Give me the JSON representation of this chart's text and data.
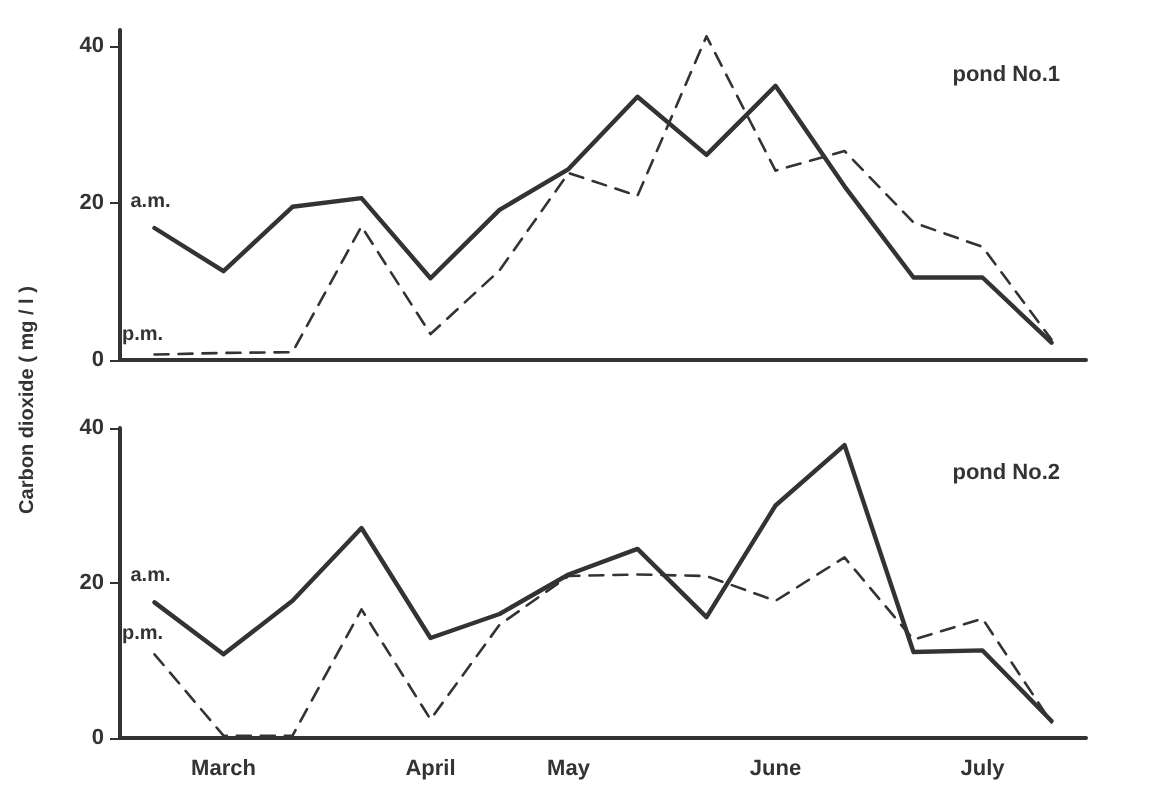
{
  "chart_data": [
    {
      "type": "line",
      "title": "pond No.1",
      "ylabel": "Carbon dioxide ( mg / l )",
      "ylim": [
        0,
        42
      ],
      "yticks": [
        0,
        20,
        40
      ],
      "categories": [
        null,
        null,
        null,
        null,
        null,
        null,
        null,
        null,
        null,
        null,
        null,
        null,
        null,
        null
      ],
      "grid": false,
      "legend": false,
      "marker": "none",
      "series": [
        {
          "name": "a.m.",
          "color": "#333333",
          "line_style": "solid",
          "values": [
            16.8,
            11.3,
            19.5,
            20.6,
            10.4,
            19.1,
            24.3,
            33.5,
            26.1,
            34.9,
            22.1,
            10.5,
            10.5,
            2.2
          ]
        },
        {
          "name": "p.m.",
          "color": "#333333",
          "line_style": "dashed",
          "values": [
            0.7,
            0.9,
            1.0,
            17.0,
            3.3,
            11.4,
            23.8,
            20.9,
            41.2,
            24.1,
            26.6,
            17.5,
            14.4,
            2.6
          ]
        }
      ]
    },
    {
      "type": "line",
      "title": "pond No.2",
      "ylim": [
        0,
        40
      ],
      "yticks": [
        0,
        20,
        40
      ],
      "categories": [
        null,
        "March",
        null,
        null,
        "April",
        null,
        "May",
        null,
        null,
        "June",
        null,
        null,
        "July",
        null
      ],
      "grid": false,
      "legend": false,
      "marker": "none",
      "series": [
        {
          "name": "a.m.",
          "color": "#333333",
          "line_style": "solid",
          "values": [
            17.5,
            10.8,
            17.7,
            27.1,
            12.9,
            16.0,
            21.1,
            24.4,
            15.6,
            30.0,
            37.8,
            11.1,
            11.3,
            2.2
          ]
        },
        {
          "name": "p.m.",
          "color": "#333333",
          "line_style": "dashed",
          "values": [
            10.8,
            0.3,
            0.3,
            16.6,
            2.4,
            14.6,
            20.9,
            21.1,
            20.9,
            17.7,
            23.3,
            12.7,
            15.4,
            2.0
          ]
        }
      ]
    }
  ]
}
